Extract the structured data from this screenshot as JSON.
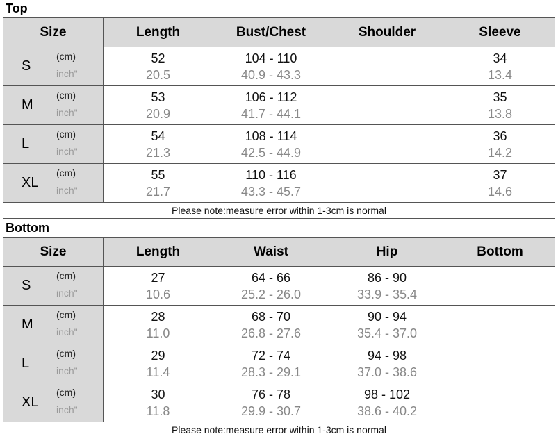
{
  "top": {
    "title": "Top",
    "headers": [
      "Size",
      "Length",
      "Bust/Chest",
      "Shoulder",
      "Sleeve"
    ],
    "unit_cm": "(cm)",
    "unit_inch": "inch\"",
    "rows": [
      {
        "size": "S",
        "cm": [
          "52",
          "104 - 110",
          "",
          "34"
        ],
        "inch": [
          "20.5",
          "40.9 - 43.3",
          "",
          "13.4"
        ]
      },
      {
        "size": "M",
        "cm": [
          "53",
          "106 - 112",
          "",
          "35"
        ],
        "inch": [
          "20.9",
          "41.7 - 44.1",
          "",
          "13.8"
        ]
      },
      {
        "size": "L",
        "cm": [
          "54",
          "108 - 114",
          "",
          "36"
        ],
        "inch": [
          "21.3",
          "42.5 - 44.9",
          "",
          "14.2"
        ]
      },
      {
        "size": "XL",
        "cm": [
          "55",
          "110 - 116",
          "",
          "37"
        ],
        "inch": [
          "21.7",
          "43.3 - 45.7",
          "",
          "14.6"
        ]
      }
    ],
    "note": "Please note:measure error within 1-3cm is normal"
  },
  "bottom": {
    "title": "Bottom",
    "headers": [
      "Size",
      "Length",
      "Waist",
      "Hip",
      "Bottom"
    ],
    "unit_cm": "(cm)",
    "unit_inch": "inch\"",
    "rows": [
      {
        "size": "S",
        "cm": [
          "27",
          "64 - 66",
          "86 - 90",
          ""
        ],
        "inch": [
          "10.6",
          "25.2 - 26.0",
          "33.9 - 35.4",
          ""
        ]
      },
      {
        "size": "M",
        "cm": [
          "28",
          "68 - 70",
          "90 - 94",
          ""
        ],
        "inch": [
          "11.0",
          "26.8 - 27.6",
          "35.4 - 37.0",
          ""
        ]
      },
      {
        "size": "L",
        "cm": [
          "29",
          "72 - 74",
          "94 - 98",
          ""
        ],
        "inch": [
          "11.4",
          "28.3 - 29.1",
          "37.0 - 38.6",
          ""
        ]
      },
      {
        "size": "XL",
        "cm": [
          "30",
          "76 - 78",
          "98 - 102",
          ""
        ],
        "inch": [
          "11.8",
          "29.9 - 30.7",
          "38.6 - 40.2",
          ""
        ]
      }
    ],
    "note": "Please note:measure error within 1-3cm is normal"
  }
}
